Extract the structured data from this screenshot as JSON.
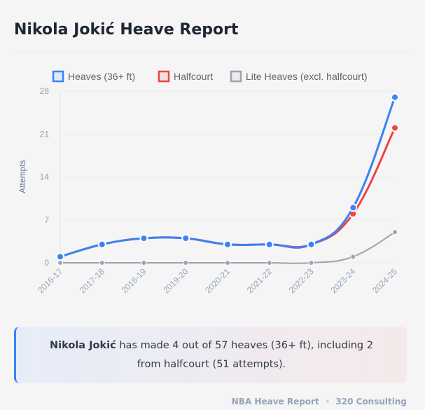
{
  "title": "Nikola Jokić Heave Report",
  "summary": {
    "player": "Nikola Jokić",
    "text": " has made 4 out of 57 heaves (36+ ft), including 2 from halfcourt (51 attempts)."
  },
  "footer": {
    "left": "NBA Heave Report",
    "separator": "•",
    "right": "320 Consulting"
  },
  "chart_data": {
    "type": "line",
    "categories": [
      "2016-17",
      "2017-18",
      "2018-19",
      "2019-20",
      "2020-21",
      "2021-22",
      "2022-23",
      "2023-24",
      "2024-25"
    ],
    "ylabel": "Attempts",
    "ylim": [
      0,
      28
    ],
    "yticks": [
      0,
      7,
      14,
      21,
      28
    ],
    "grid": true,
    "legend": "top",
    "series": [
      {
        "name": "Heaves (36+ ft)",
        "color": "#3b82f6",
        "values": [
          1,
          3,
          4,
          4,
          3,
          3,
          3,
          9,
          27
        ]
      },
      {
        "name": "Halfcourt",
        "color": "#ef4444",
        "values": [
          1,
          3,
          4,
          4,
          3,
          3,
          3,
          8,
          22
        ]
      },
      {
        "name": "Lite Heaves (excl. halfcourt)",
        "color": "#9ca3af",
        "values": [
          0,
          0,
          0,
          0,
          0,
          0,
          0,
          1,
          5
        ]
      }
    ]
  }
}
